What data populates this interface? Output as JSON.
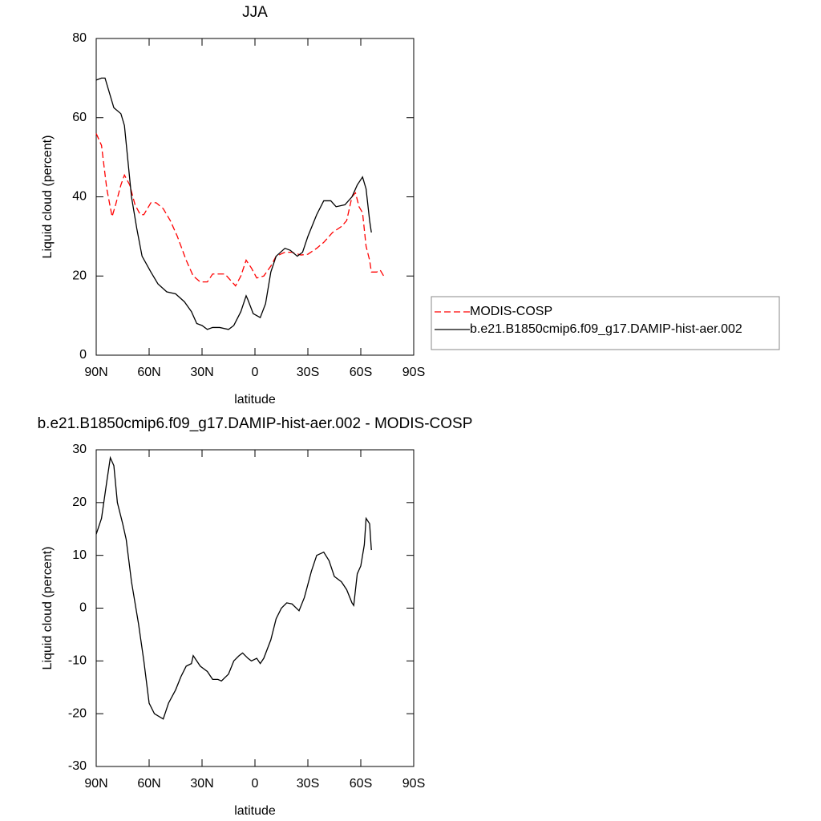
{
  "chart_data": [
    {
      "type": "line",
      "title": "JJA",
      "xlabel": "latitude",
      "ylabel": "Liquid cloud (percent)",
      "xlim": [
        90,
        -90
      ],
      "xticks": [
        {
          "value": 90,
          "label": "90N"
        },
        {
          "value": 60,
          "label": "60N"
        },
        {
          "value": 30,
          "label": "30N"
        },
        0,
        {
          "value": -30,
          "label": "30S"
        },
        {
          "value": -60,
          "label": "60S"
        },
        {
          "value": -90,
          "label": "90S"
        }
      ],
      "ylim": [
        0,
        80
      ],
      "yticks": [
        0,
        20,
        40,
        60,
        80
      ],
      "legend": "right",
      "series": [
        {
          "name": "MODIS-COSP",
          "color": "#ff0000",
          "style": "dashed",
          "x": [
            90,
            87,
            84,
            81,
            79,
            76,
            74,
            71,
            68,
            65,
            63,
            59,
            56,
            52,
            48,
            44,
            39,
            35,
            31,
            27,
            24,
            21,
            17,
            14,
            11,
            8,
            5,
            2,
            -1,
            -5,
            -9,
            -12,
            -17,
            -21,
            -26,
            -30,
            -35,
            -39,
            -44,
            -49,
            -52,
            -55,
            -57,
            -59,
            -61,
            -63,
            -65,
            -66,
            -69,
            -71,
            -73
          ],
          "values": [
            56,
            53,
            42,
            35,
            38,
            43,
            45.5,
            43,
            38,
            35.5,
            35.5,
            38.5,
            38.5,
            37,
            34,
            30,
            24,
            20,
            18.5,
            18.5,
            20.5,
            20.5,
            20.5,
            19,
            17.5,
            20,
            24,
            22,
            19.5,
            20,
            22.5,
            25,
            26,
            26,
            25.3,
            25.5,
            27,
            28.5,
            31,
            32.5,
            34,
            40,
            41,
            37.5,
            36,
            27.5,
            24,
            21,
            21,
            21.5,
            20
          ]
        },
        {
          "name": "b.e21.B1850cmip6.f09_g17.DAMIP-hist-aer.002",
          "color": "#000000",
          "style": "solid",
          "x": [
            90,
            87,
            85,
            83,
            80,
            76,
            74,
            72,
            70,
            67,
            64,
            59,
            55,
            50,
            45,
            40,
            36,
            33,
            30,
            27,
            24,
            20,
            15,
            12,
            8,
            5,
            4,
            1,
            -3,
            -6,
            -9,
            -12,
            -17,
            -20,
            -24,
            -27,
            -30,
            -35,
            -39,
            -43,
            -46,
            -51,
            -55,
            -58,
            -61,
            -63,
            -65,
            -66
          ],
          "values": [
            69.5,
            70,
            70,
            67,
            62.5,
            61,
            58,
            49,
            40,
            32,
            25,
            21,
            18,
            16,
            15.5,
            13.5,
            11,
            8,
            7.5,
            6.5,
            7,
            7,
            6.5,
            7.5,
            11,
            15,
            14,
            10.5,
            9.5,
            13,
            21,
            25,
            27,
            26.5,
            25,
            26,
            30,
            35.5,
            39,
            39,
            37.5,
            38,
            40,
            43,
            45,
            42,
            34,
            31
          ]
        }
      ]
    },
    {
      "type": "line",
      "title": "b.e21.B1850cmip6.f09_g17.DAMIP-hist-aer.002 - MODIS-COSP",
      "xlabel": "latitude",
      "ylabel": "Liquid cloud (percent)",
      "xlim": [
        90,
        -90
      ],
      "xticks": [
        {
          "value": 90,
          "label": "90N"
        },
        {
          "value": 60,
          "label": "60N"
        },
        {
          "value": 30,
          "label": "30N"
        },
        0,
        {
          "value": -30,
          "label": "30S"
        },
        {
          "value": -60,
          "label": "60S"
        },
        {
          "value": -90,
          "label": "90S"
        }
      ],
      "ylim": [
        -30,
        30
      ],
      "yticks": [
        -30,
        -20,
        -10,
        0,
        10,
        20,
        30
      ],
      "color": "#000000",
      "x": [
        90,
        87,
        84,
        82,
        80,
        78,
        75,
        73,
        70,
        66,
        63,
        60,
        57,
        52,
        49,
        45,
        42,
        39,
        36,
        35,
        31,
        27,
        24,
        21,
        19,
        15,
        12,
        9,
        7,
        4,
        2,
        -1,
        -3,
        -5,
        -9,
        -12,
        -15,
        -18,
        -21,
        -25,
        -28,
        -32,
        -35,
        -39,
        -42,
        -45,
        -49,
        -52,
        -55,
        -56,
        -58,
        -60,
        -62,
        -63,
        -65,
        -66
      ],
      "values": [
        14,
        17,
        24,
        28.5,
        27,
        20,
        16,
        13,
        5,
        -3,
        -10,
        -18,
        -20,
        -21,
        -18,
        -15.5,
        -13,
        -11,
        -10.5,
        -9,
        -11,
        -12,
        -13.5,
        -13.5,
        -13.8,
        -12.5,
        -10,
        -9,
        -8.5,
        -9.5,
        -10,
        -9.5,
        -10.5,
        -9.5,
        -6,
        -2,
        0,
        1,
        0.8,
        -0.5,
        2,
        7,
        10,
        10.6,
        9,
        6,
        5,
        3.5,
        1,
        0.5,
        6.5,
        8,
        12,
        17,
        16,
        11
      ]
    }
  ]
}
